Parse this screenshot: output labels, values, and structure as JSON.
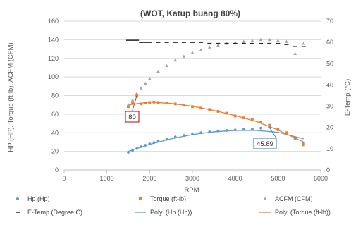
{
  "chart_data": {
    "type": "scatter",
    "title": "(WOT, Katup buang 80%)",
    "xlabel": "RPM",
    "ylabel": "HP (HP), Torque (ft-lb), ACFM (CFM)",
    "y2label": "E-Temp (°C)",
    "xlim": [
      0,
      6000
    ],
    "ylim": [
      0,
      160
    ],
    "y2lim": [
      0,
      70
    ],
    "xticks": [
      "0",
      "1000",
      "2000",
      "3000",
      "4000",
      "5000",
      "6000"
    ],
    "yticks": [
      "0",
      "20",
      "40",
      "60",
      "80",
      "100",
      "120",
      "140",
      "160"
    ],
    "y2ticks": [
      "0",
      "10",
      "20",
      "30",
      "40",
      "50",
      "60",
      "70"
    ],
    "grid": true,
    "legend_position": "bottom",
    "series": [
      {
        "name": "Hp (Hp)",
        "axis": "left",
        "marker": "circle",
        "color": "#5b9bd5",
        "x": [
          1500,
          1600,
          1700,
          1800,
          1900,
          2000,
          2100,
          2200,
          2400,
          2600,
          2800,
          3000,
          3200,
          3400,
          3600,
          3800,
          4000,
          4200,
          4400,
          4600,
          4800,
          5000,
          5200,
          5400,
          5600
        ],
        "y": [
          19,
          21,
          23,
          25,
          26.5,
          28,
          29.5,
          31,
          33,
          35.5,
          37,
          38.5,
          40,
          41,
          42,
          42.5,
          43,
          43.5,
          44,
          45,
          45.89,
          43,
          40,
          35,
          29
        ]
      },
      {
        "name": "Torque (ft-lb)",
        "axis": "left",
        "marker": "square",
        "color": "#ed7d31",
        "x": [
          1500,
          1600,
          1700,
          1800,
          1900,
          2000,
          2100,
          2200,
          2400,
          2600,
          2800,
          3000,
          3200,
          3400,
          3600,
          3800,
          4000,
          4200,
          4400,
          4600,
          4800,
          5000,
          5200,
          5400,
          5600
        ],
        "y": [
          68,
          72,
          80,
          71,
          72,
          72.5,
          73,
          72.5,
          72,
          71,
          69.5,
          68,
          66.5,
          65,
          63,
          61,
          58,
          56,
          54,
          51.5,
          48,
          44,
          40,
          34,
          27
        ]
      },
      {
        "name": "ACFM (CFM)",
        "axis": "left",
        "marker": "triangle",
        "color": "#a5a5a5",
        "x": [
          1500,
          1600,
          1700,
          1800,
          1900,
          2000,
          2200,
          2400,
          2600,
          2800,
          3000,
          3200,
          3400,
          3600,
          3800,
          4000,
          4200,
          4400,
          4600,
          4800,
          5000,
          5200,
          5400,
          5600
        ],
        "y": [
          70,
          75,
          82,
          88,
          93,
          98,
          106,
          112,
          118,
          122,
          126,
          129,
          132,
          134,
          136,
          137,
          138,
          139,
          140,
          140,
          139,
          138,
          125,
          136
        ]
      },
      {
        "name": "E-Temp (Degree C)",
        "axis": "right",
        "marker": "dash",
        "color": "#262626",
        "x": [
          1500,
          1600,
          1700,
          1800,
          1900,
          2000,
          2200,
          2400,
          2600,
          2800,
          3000,
          3200,
          3400,
          3600,
          3800,
          4000,
          4200,
          4400,
          4600,
          4800,
          5000,
          5200,
          5400,
          5600
        ],
        "y": [
          61,
          61,
          61,
          60,
          60,
          60,
          60,
          60,
          60,
          60,
          60,
          60,
          59.5,
          59.5,
          59.5,
          59.5,
          59.5,
          59.5,
          59.5,
          59.5,
          59.5,
          59,
          58,
          58
        ]
      },
      {
        "name": "Poly. (Hp (Hp))",
        "axis": "left",
        "style": "trendline",
        "color": "#5b9bd5",
        "x": [
          1500,
          2000,
          2500,
          3000,
          3500,
          4000,
          4500,
          5000,
          5600
        ],
        "y": [
          20,
          27.5,
          33.5,
          38,
          41,
          42.5,
          42.5,
          40.5,
          33.5
        ]
      },
      {
        "name": "Poly. (Torque (ft-lb))",
        "axis": "left",
        "style": "trendline",
        "color": "#ed7d31",
        "x": [
          1500,
          2000,
          2500,
          3000,
          3500,
          4000,
          4500,
          5000,
          5600
        ],
        "y": [
          70,
          73,
          71.5,
          68.5,
          64,
          58.5,
          52,
          43,
          30
        ]
      }
    ],
    "annotations": [
      {
        "text": "80",
        "x": 1700,
        "y": 80,
        "color": "#c00000"
      },
      {
        "text": "45.89",
        "x": 4800,
        "y": 45.89,
        "color": "#2e75b6"
      }
    ]
  }
}
